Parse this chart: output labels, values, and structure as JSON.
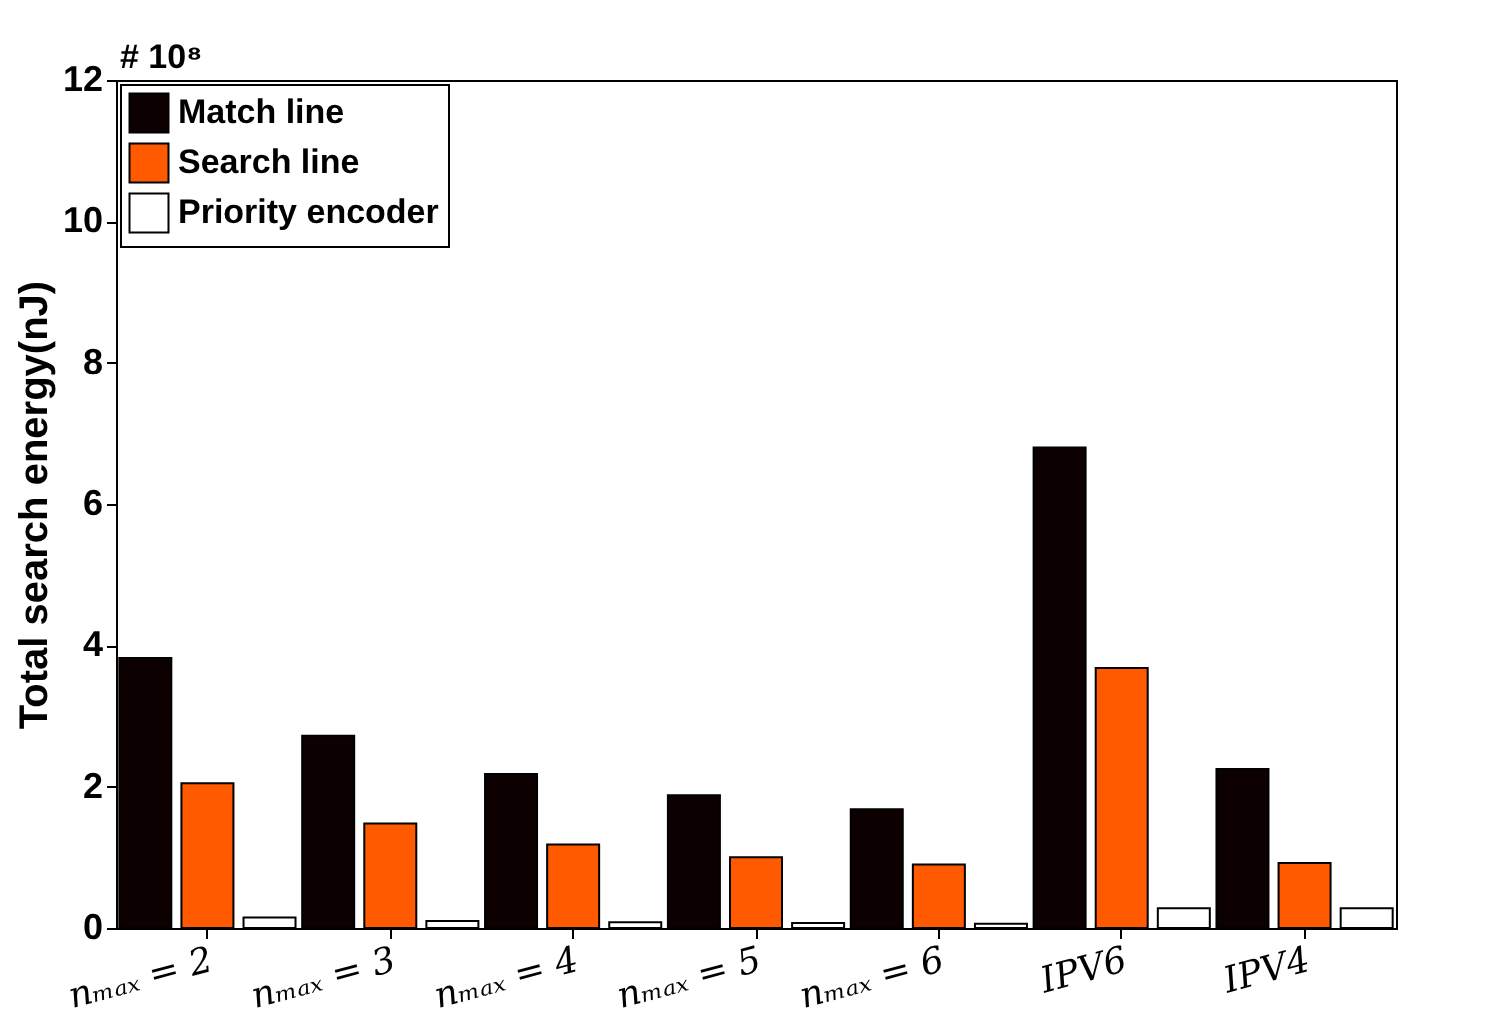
{
  "chart_data": {
    "type": "bar",
    "categories": [
      "nₘₐₓ = 2",
      "nₘₐₓ = 3",
      "nₘₐₓ = 4",
      "nₘₐₓ = 5",
      "nₘₐₓ = 6",
      "IPV6",
      "IPV4"
    ],
    "series": [
      {
        "name": "Match line",
        "color": "#0d0000",
        "values": [
          3.82,
          2.72,
          2.18,
          1.88,
          1.68,
          6.8,
          2.25
        ]
      },
      {
        "name": "Search line",
        "color": "#ff5a00",
        "values": [
          2.05,
          1.48,
          1.18,
          1.0,
          0.9,
          3.68,
          0.92
        ]
      },
      {
        "name": "Priority encoder",
        "color": "#ffffff",
        "values": [
          0.15,
          0.1,
          0.08,
          0.07,
          0.06,
          0.28,
          0.28
        ]
      }
    ],
    "ylabel": "Total search energy(nJ)",
    "ylim": [
      0,
      12
    ],
    "yticks": [
      0,
      2,
      4,
      6,
      8,
      10,
      12
    ],
    "annotations": [
      "# 10⁸"
    ],
    "legend": "top left",
    "grid": false
  }
}
